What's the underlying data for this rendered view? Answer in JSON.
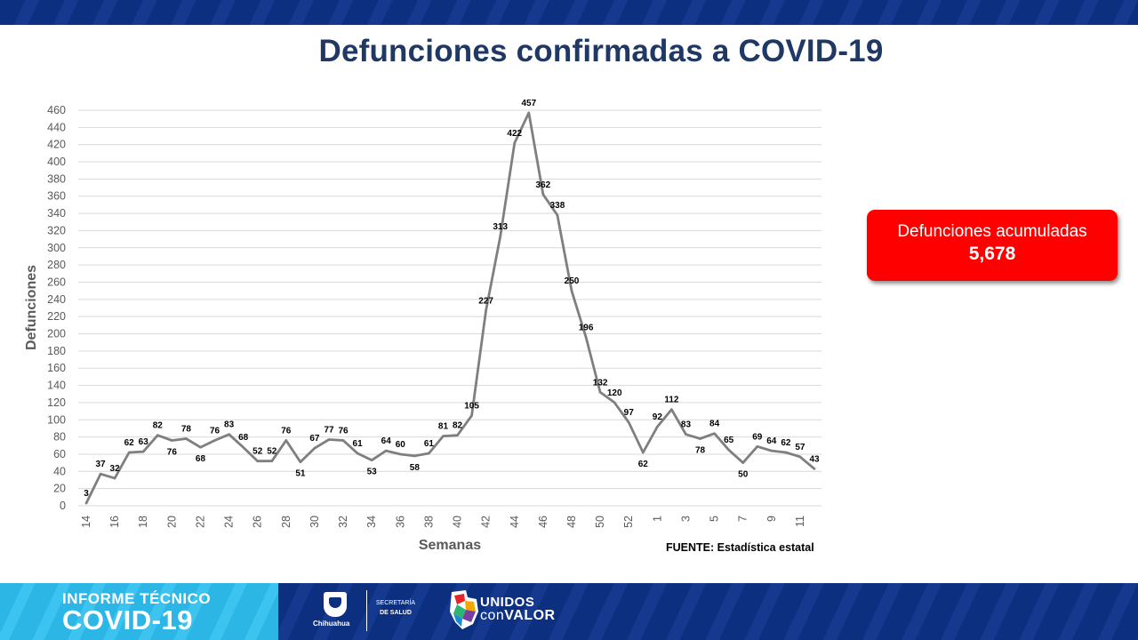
{
  "header": {
    "title": "Defunciones confirmadas a COVID-19"
  },
  "summary": {
    "label": "Defunciones acumuladas",
    "value": "5,678"
  },
  "source": {
    "text": "FUENTE: Estadística estatal"
  },
  "footer": {
    "heading": "INFORME TÉCNICO",
    "brand": "COVID-19",
    "state_logo_text": "Chihuahua",
    "dept_line1": "SECRETARÍA",
    "dept_line2": "DE SALUD",
    "campaign_line1": "UNIDOS",
    "campaign_line2_prefix": "con",
    "campaign_line2_bold": "VALOR"
  },
  "colors": {
    "title": "#1f3864",
    "line": "#7f7f7f",
    "grid": "#d9d9d9",
    "summary_bg": "#ff0000",
    "footer_left": "#2bb6e6",
    "footer_right": "#0d2f80"
  },
  "chart_data": {
    "type": "line",
    "title": "Defunciones confirmadas a COVID-19",
    "xlabel": "Semanas",
    "ylabel": "Defunciones",
    "ylim": [
      0,
      460
    ],
    "ytick_step": 20,
    "grid": true,
    "x": [
      "14",
      "15",
      "16",
      "17",
      "18",
      "19",
      "20",
      "21",
      "22",
      "23",
      "24",
      "25",
      "26",
      "27",
      "28",
      "29",
      "30",
      "31",
      "32",
      "33",
      "34",
      "35",
      "36",
      "37",
      "38",
      "39",
      "40",
      "41",
      "42",
      "43",
      "44",
      "45",
      "46",
      "47",
      "48",
      "49",
      "50",
      "51",
      "52",
      "53",
      "1",
      "2",
      "3",
      "4",
      "5",
      "6",
      "7",
      "8",
      "9",
      "10",
      "11",
      "12"
    ],
    "x_tick_labels_shown": [
      "14",
      "16",
      "18",
      "20",
      "22",
      "24",
      "26",
      "28",
      "30",
      "32",
      "34",
      "36",
      "38",
      "40",
      "42",
      "44",
      "46",
      "48",
      "50",
      "52",
      "1",
      "3",
      "5",
      "7",
      "9",
      "11"
    ],
    "series": [
      {
        "values": [
          3,
          37,
          32,
          62,
          63,
          82,
          76,
          78,
          68,
          76,
          83,
          68,
          52,
          52,
          76,
          51,
          67,
          77,
          76,
          61,
          53,
          64,
          60,
          58,
          61,
          81,
          82,
          105,
          227,
          313,
          422,
          457,
          362,
          338,
          250,
          196,
          132,
          120,
          97,
          62,
          92,
          112,
          83,
          78,
          84,
          65,
          50,
          69,
          64,
          62,
          57,
          43
        ]
      }
    ]
  }
}
